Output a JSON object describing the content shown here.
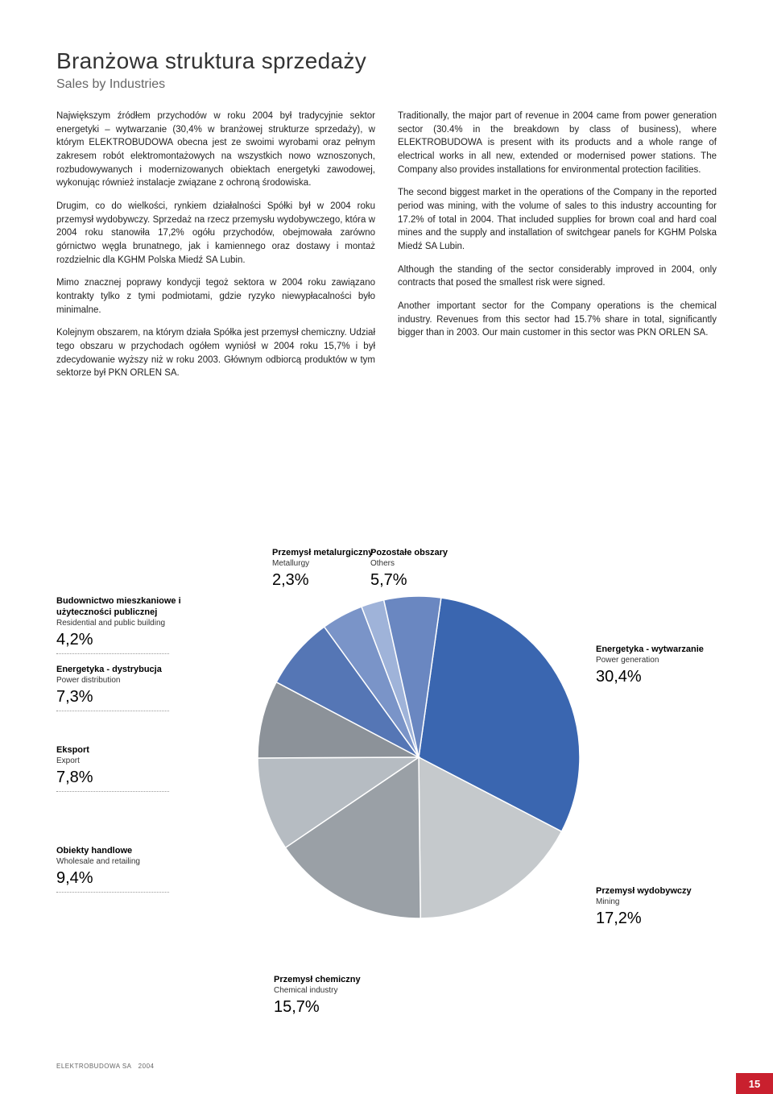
{
  "header": {
    "title_pl": "Branżowa struktura sprzedaży",
    "title_en": "Sales by Industries"
  },
  "body": {
    "left_paragraphs": [
      "Największym źródłem przychodów w roku 2004 był tradycyjnie sektor energetyki – wytwarzanie (30,4% w branżowej strukturze sprzedaży), w którym ELEKTROBUDOWA obecna jest ze swoimi wyrobami oraz pełnym zakresem robót elektromontażowych na wszystkich nowo wznoszonych, rozbudowywanych i modernizowanych obiektach energetyki zawodowej, wykonując również instalacje związane z ochroną środowiska.",
      "Drugim, co do wielkości, rynkiem działalności Spółki był w 2004 roku przemysł wydobywczy. Sprzedaż na rzecz przemysłu wydobywczego, która w 2004 roku stanowiła 17,2% ogółu przychodów, obejmowała zarówno górnictwo węgla brunatnego, jak i kamiennego oraz dostawy i montaż rozdzielnic dla KGHM Polska Miedź SA Lubin.",
      "Mimo znacznej poprawy kondycji tegoż sektora w 2004 roku zawiązano kontrakty tylko z tymi podmiotami, gdzie ryzyko niewypłacalności było minimalne.",
      "Kolejnym obszarem, na którym działa Spółka jest przemysł chemiczny. Udział tego obszaru w przychodach ogółem wyniósł w 2004 roku 15,7% i był zdecydowanie wyższy niż w roku 2003. Głównym odbiorcą produktów w tym sektorze był PKN ORLEN SA."
    ],
    "right_paragraphs": [
      "Traditionally, the major part of revenue in 2004 came from power generation sector (30.4% in the breakdown by class of business), where ELEKTROBUDOWA is present with its products and a whole range of electrical works in all new, extended or modernised power stations. The Company also provides installations for environmental protection facilities.",
      "The second biggest market in the operations of the Company in the reported period was mining, with the volume of sales to this industry accounting for 17.2% of total in 2004. That included supplies for brown coal and hard coal mines and the supply and installation of switchgear panels for KGHM Polska Miedź SA Lubin.",
      "Although the standing of the sector considerably improved in 2004, only contracts that posed the smallest risk were signed.",
      "Another important sector for the Company operations is the chemical industry. Revenues from this sector had 15.7% share in total, significantly bigger than in 2003. Our main customer in this sector was PKN ORLEN SA."
    ]
  },
  "chart": {
    "type": "pie",
    "background_color": "#ffffff",
    "slices": [
      {
        "label_pl": "Energetyka - wytwarzanie",
        "label_en": "Power generation",
        "value": 30.4,
        "pct_text": "30,4%",
        "color": "#3a66b0"
      },
      {
        "label_pl": "Przemysł wydobywczy",
        "label_en": "Mining",
        "value": 17.2,
        "pct_text": "17,2%",
        "color": "#c5c9cc"
      },
      {
        "label_pl": "Przemysł chemiczny",
        "label_en": "Chemical industry",
        "value": 15.7,
        "pct_text": "15,7%",
        "color": "#9aa0a6"
      },
      {
        "label_pl": "Obiekty handlowe",
        "label_en": "Wholesale and retailing",
        "value": 9.4,
        "pct_text": "9,4%",
        "color": "#b6bcc2"
      },
      {
        "label_pl": "Eksport",
        "label_en": "Export",
        "value": 7.8,
        "pct_text": "7,8%",
        "color": "#8c9299"
      },
      {
        "label_pl": "Energetyka - dystrybucja",
        "label_en": "Power distribution",
        "value": 7.3,
        "pct_text": "7,3%",
        "color": "#5576b5"
      },
      {
        "label_pl": "Budownictwo mieszkaniowe i użyteczności publicznej",
        "label_en": "Residential and public building",
        "value": 4.2,
        "pct_text": "4,2%",
        "color": "#7a94c8"
      },
      {
        "label_pl": "Przemysł metalurgiczny",
        "label_en": "Metallurgy",
        "value": 2.3,
        "pct_text": "2,3%",
        "color": "#9fb3d9"
      },
      {
        "label_pl": "Pozostałe obszary",
        "label_en": "Others",
        "value": 5.7,
        "pct_text": "5,7%",
        "color": "#6a87c1"
      }
    ],
    "stroke_color": "#ffffff",
    "stroke_width": 1.5,
    "label_font_size_pl": 11,
    "label_font_size_en": 10,
    "pct_font_size": 20
  },
  "footer": {
    "company": "ELEKTROBUDOWA SA",
    "year": "2004",
    "page_number": "15",
    "page_bg": "#c9202e"
  }
}
